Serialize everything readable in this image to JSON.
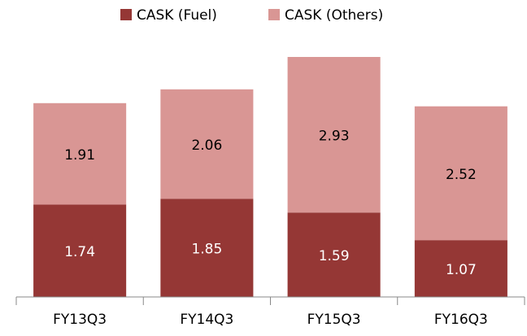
{
  "chart_data": {
    "type": "stacked_bar",
    "categories": [
      "FY13Q3",
      "FY14Q3",
      "FY15Q3",
      "FY16Q3"
    ],
    "series": [
      {
        "name": "CASK (Fuel)",
        "color": "#953735",
        "values": [
          1.74,
          1.85,
          1.59,
          1.07
        ]
      },
      {
        "name": "CASK (Others)",
        "color": "#d99694",
        "values": [
          1.91,
          2.06,
          2.93,
          2.52
        ]
      }
    ],
    "legend": "top"
  }
}
